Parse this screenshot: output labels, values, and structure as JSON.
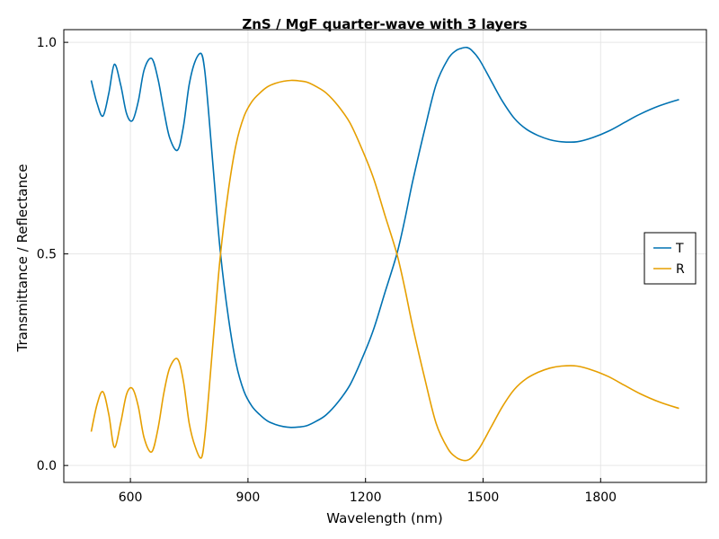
{
  "chart_data": {
    "type": "line",
    "title": "ZnS / MgF quarter-wave with 3 layers",
    "xlabel": "Wavelength (nm)",
    "ylabel": "Transmittance / Reflectance",
    "xlim": [
      430,
      2070
    ],
    "ylim": [
      -0.04,
      1.03
    ],
    "xticks": [
      600,
      900,
      1200,
      1500,
      1800
    ],
    "xtick_labels": [
      "600",
      "900",
      "1200",
      "1500",
      "1800"
    ],
    "yticks": [
      0.0,
      0.5,
      1.0
    ],
    "ytick_labels": [
      "0.0",
      "0.5",
      "1.0"
    ],
    "grid": true,
    "legend_position": "right",
    "series": [
      {
        "name": "T",
        "color": "#0072b2",
        "x": [
          500,
          515,
          530,
          545,
          559,
          575,
          590,
          605,
          620,
          635,
          654,
          670,
          685,
          700,
          720,
          735,
          750,
          765,
          781,
          790,
          800,
          815,
          830,
          850,
          870,
          890,
          910,
          930,
          950,
          970,
          990,
          1010,
          1030,
          1050,
          1075,
          1100,
          1130,
          1160,
          1190,
          1220,
          1250,
          1280,
          1300,
          1320,
          1350,
          1380,
          1410,
          1430,
          1445,
          1458,
          1470,
          1490,
          1520,
          1550,
          1580,
          1610,
          1640,
          1670,
          1700,
          1740,
          1780,
          1820,
          1860,
          1900,
          1950,
          2000
        ],
        "values": [
          0.91,
          0.855,
          0.826,
          0.88,
          0.948,
          0.9,
          0.832,
          0.815,
          0.86,
          0.935,
          0.962,
          0.915,
          0.84,
          0.775,
          0.745,
          0.8,
          0.9,
          0.955,
          0.973,
          0.93,
          0.83,
          0.66,
          0.5,
          0.35,
          0.24,
          0.175,
          0.14,
          0.12,
          0.105,
          0.097,
          0.092,
          0.09,
          0.091,
          0.094,
          0.105,
          0.12,
          0.15,
          0.19,
          0.25,
          0.32,
          0.41,
          0.5,
          0.58,
          0.67,
          0.79,
          0.9,
          0.96,
          0.98,
          0.986,
          0.988,
          0.982,
          0.96,
          0.91,
          0.86,
          0.82,
          0.795,
          0.78,
          0.77,
          0.765,
          0.765,
          0.775,
          0.79,
          0.81,
          0.83,
          0.85,
          0.865
        ]
      },
      {
        "name": "R",
        "color": "#e69f00",
        "x": [
          500,
          515,
          530,
          545,
          559,
          575,
          590,
          605,
          620,
          635,
          654,
          670,
          685,
          700,
          720,
          735,
          750,
          765,
          781,
          790,
          800,
          815,
          830,
          850,
          870,
          890,
          910,
          930,
          950,
          970,
          990,
          1010,
          1030,
          1050,
          1075,
          1100,
          1130,
          1160,
          1190,
          1220,
          1250,
          1280,
          1300,
          1320,
          1350,
          1380,
          1410,
          1430,
          1445,
          1458,
          1470,
          1490,
          1520,
          1550,
          1580,
          1610,
          1640,
          1670,
          1700,
          1740,
          1780,
          1820,
          1860,
          1900,
          1950,
          2000
        ],
        "values": [
          0.08,
          0.145,
          0.174,
          0.12,
          0.043,
          0.1,
          0.168,
          0.182,
          0.14,
          0.065,
          0.032,
          0.085,
          0.17,
          0.23,
          0.252,
          0.2,
          0.1,
          0.045,
          0.018,
          0.07,
          0.17,
          0.34,
          0.5,
          0.65,
          0.76,
          0.825,
          0.86,
          0.88,
          0.895,
          0.903,
          0.908,
          0.91,
          0.909,
          0.906,
          0.895,
          0.88,
          0.85,
          0.81,
          0.75,
          0.68,
          0.59,
          0.5,
          0.42,
          0.33,
          0.21,
          0.1,
          0.04,
          0.02,
          0.013,
          0.012,
          0.018,
          0.04,
          0.09,
          0.14,
          0.18,
          0.205,
          0.22,
          0.23,
          0.235,
          0.235,
          0.225,
          0.21,
          0.19,
          0.17,
          0.15,
          0.135
        ]
      }
    ]
  }
}
